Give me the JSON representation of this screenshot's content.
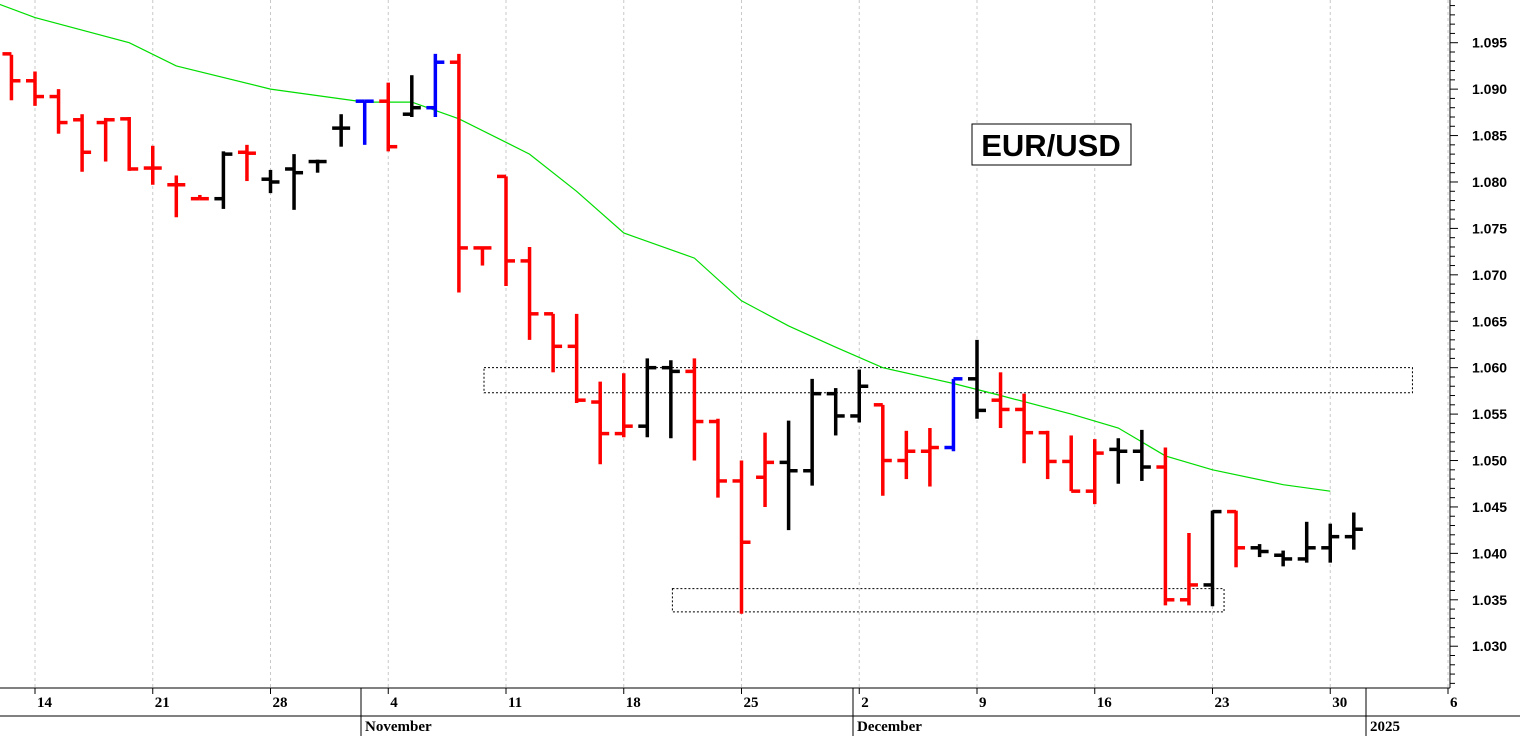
{
  "chart_data": {
    "type": "ohlc",
    "title": "EUR/USD",
    "ylim": [
      1.0255,
      1.0996
    ],
    "y_ticks": [
      1.03,
      1.035,
      1.04,
      1.045,
      1.05,
      1.055,
      1.06,
      1.065,
      1.07,
      1.075,
      1.08,
      1.085,
      1.09,
      1.095
    ],
    "y_tick_labels": [
      "1.030",
      "1.035",
      "1.040",
      "1.045",
      "1.050",
      "1.055",
      "1.060",
      "1.065",
      "1.070",
      "1.075",
      "1.080",
      "1.085",
      "1.090",
      "1.095"
    ],
    "x_tick_labels": [
      "14",
      "21",
      "28",
      "4",
      "11",
      "18",
      "25",
      "2",
      "9",
      "16",
      "23",
      "30",
      "6"
    ],
    "month_labels": [
      "November",
      "December",
      "2025"
    ],
    "grid": "vertical dotted",
    "colors": {
      "down": "#ff0000",
      "up": "#000000",
      "highlight": "#0000ff",
      "moving_average": "#00dd00",
      "grid": "#c8c8c8"
    },
    "bars": [
      {
        "date": "2024-10-10",
        "o": 1.0938,
        "h": 1.0955,
        "l": 1.0935,
        "c": 1.0938,
        "color": "down"
      },
      {
        "date": "2024-10-11",
        "o": 1.0938,
        "h": 1.0937,
        "l": 1.0888,
        "c": 1.0909,
        "color": "down"
      },
      {
        "date": "2024-10-14",
        "o": 1.0909,
        "h": 1.0919,
        "l": 1.0882,
        "c": 1.0892,
        "color": "down"
      },
      {
        "date": "2024-10-15",
        "o": 1.0892,
        "h": 1.09,
        "l": 1.0852,
        "c": 1.0864,
        "color": "down"
      },
      {
        "date": "2024-10-16",
        "o": 1.0867,
        "h": 1.0873,
        "l": 1.0811,
        "c": 1.0832,
        "color": "down"
      },
      {
        "date": "2024-10-17",
        "o": 1.0864,
        "h": 1.0869,
        "l": 1.0822,
        "c": 1.0867,
        "color": "down"
      },
      {
        "date": "2024-10-18",
        "o": 1.0868,
        "h": 1.087,
        "l": 1.0812,
        "c": 1.0814,
        "color": "down"
      },
      {
        "date": "2024-10-21",
        "o": 1.0815,
        "h": 1.0839,
        "l": 1.0797,
        "c": 1.0815,
        "color": "down"
      },
      {
        "date": "2024-10-22",
        "o": 1.0797,
        "h": 1.0807,
        "l": 1.0762,
        "c": 1.0797,
        "color": "down"
      },
      {
        "date": "2024-10-23",
        "o": 1.0782,
        "h": 1.0786,
        "l": 1.0782,
        "c": 1.0782,
        "color": "down"
      },
      {
        "date": "2024-10-24",
        "o": 1.0782,
        "h": 1.0833,
        "l": 1.0771,
        "c": 1.083,
        "color": "up"
      },
      {
        "date": "2024-10-25",
        "o": 1.0832,
        "h": 1.084,
        "l": 1.0801,
        "c": 1.0831,
        "color": "down"
      },
      {
        "date": "2024-10-28",
        "o": 1.0803,
        "h": 1.0813,
        "l": 1.0788,
        "c": 1.08,
        "color": "up"
      },
      {
        "date": "2024-10-29",
        "o": 1.0814,
        "h": 1.083,
        "l": 1.077,
        "c": 1.081,
        "color": "up"
      },
      {
        "date": "2024-10-30",
        "o": 1.0822,
        "h": 1.0824,
        "l": 1.081,
        "c": 1.0822,
        "color": "up"
      },
      {
        "date": "2024-10-31",
        "o": 1.0858,
        "h": 1.0873,
        "l": 1.0838,
        "c": 1.0858,
        "color": "up"
      },
      {
        "date": "2024-11-01",
        "o": 1.0887,
        "h": 1.0887,
        "l": 1.084,
        "c": 1.0887,
        "color": "highlight"
      },
      {
        "date": "2024-11-04",
        "o": 1.0887,
        "h": 1.0907,
        "l": 1.0833,
        "c": 1.0838,
        "color": "down"
      },
      {
        "date": "2024-11-05",
        "o": 1.0873,
        "h": 1.0915,
        "l": 1.087,
        "c": 1.088,
        "color": "up"
      },
      {
        "date": "2024-11-06",
        "o": 1.088,
        "h": 1.0938,
        "l": 1.087,
        "c": 1.0929,
        "color": "highlight"
      },
      {
        "date": "2024-11-07",
        "o": 1.0929,
        "h": 1.0938,
        "l": 1.0681,
        "c": 1.0729,
        "color": "down"
      },
      {
        "date": "2024-11-08",
        "o": 1.0729,
        "h": 1.073,
        "l": 1.071,
        "c": 1.0729,
        "color": "down"
      },
      {
        "date": "2024-11-11",
        "o": 1.0806,
        "h": 1.0806,
        "l": 1.0688,
        "c": 1.0715,
        "color": "down"
      },
      {
        "date": "2024-11-12",
        "o": 1.0715,
        "h": 1.073,
        "l": 1.063,
        "c": 1.0658,
        "color": "down"
      },
      {
        "date": "2024-11-13",
        "o": 1.0658,
        "h": 1.0658,
        "l": 1.0595,
        "c": 1.0623,
        "color": "down"
      },
      {
        "date": "2024-11-14",
        "o": 1.0623,
        "h": 1.0658,
        "l": 1.0562,
        "c": 1.0565,
        "color": "down"
      },
      {
        "date": "2024-11-15",
        "o": 1.0563,
        "h": 1.0585,
        "l": 1.0496,
        "c": 1.0529,
        "color": "down"
      },
      {
        "date": "2024-11-18",
        "o": 1.0529,
        "h": 1.0594,
        "l": 1.0525,
        "c": 1.0537,
        "color": "down"
      },
      {
        "date": "2024-11-19",
        "o": 1.0537,
        "h": 1.061,
        "l": 1.0525,
        "c": 1.06,
        "color": "up"
      },
      {
        "date": "2024-11-20",
        "o": 1.06,
        "h": 1.0608,
        "l": 1.0524,
        "c": 1.0596,
        "color": "up"
      },
      {
        "date": "2024-11-21",
        "o": 1.0596,
        "h": 1.061,
        "l": 1.05,
        "c": 1.0542,
        "color": "down"
      },
      {
        "date": "2024-11-22",
        "o": 1.0542,
        "h": 1.0545,
        "l": 1.046,
        "c": 1.0478,
        "color": "down"
      },
      {
        "date": "2024-11-25",
        "o": 1.0478,
        "h": 1.05,
        "l": 1.0335,
        "c": 1.0412,
        "color": "down"
      },
      {
        "date": "2024-11-26",
        "o": 1.0482,
        "h": 1.053,
        "l": 1.045,
        "c": 1.0498,
        "color": "down"
      },
      {
        "date": "2024-11-27",
        "o": 1.0498,
        "h": 1.0543,
        "l": 1.0425,
        "c": 1.0489,
        "color": "up"
      },
      {
        "date": "2024-11-28",
        "o": 1.0489,
        "h": 1.0588,
        "l": 1.0473,
        "c": 1.0572,
        "color": "up"
      },
      {
        "date": "2024-11-29",
        "o": 1.0572,
        "h": 1.0578,
        "l": 1.0527,
        "c": 1.0548,
        "color": "up"
      },
      {
        "date": "2024-12-02",
        "o": 1.0548,
        "h": 1.0598,
        "l": 1.0541,
        "c": 1.058,
        "color": "up"
      },
      {
        "date": "2024-12-03",
        "o": 1.056,
        "h": 1.056,
        "l": 1.0462,
        "c": 1.05,
        "color": "down"
      },
      {
        "date": "2024-12-04",
        "o": 1.05,
        "h": 1.0532,
        "l": 1.048,
        "c": 1.051,
        "color": "down"
      },
      {
        "date": "2024-12-05",
        "o": 1.051,
        "h": 1.0535,
        "l": 1.0472,
        "c": 1.0514,
        "color": "down"
      },
      {
        "date": "2024-12-06",
        "o": 1.0514,
        "h": 1.0588,
        "l": 1.051,
        "c": 1.0588,
        "color": "highlight"
      },
      {
        "date": "2024-12-09",
        "o": 1.0588,
        "h": 1.063,
        "l": 1.0545,
        "c": 1.0554,
        "color": "up"
      },
      {
        "date": "2024-12-10",
        "o": 1.0565,
        "h": 1.0595,
        "l": 1.0535,
        "c": 1.0555,
        "color": "down"
      },
      {
        "date": "2024-12-11",
        "o": 1.0555,
        "h": 1.0572,
        "l": 1.0497,
        "c": 1.053,
        "color": "down"
      },
      {
        "date": "2024-12-12",
        "o": 1.053,
        "h": 1.0532,
        "l": 1.048,
        "c": 1.0499,
        "color": "down"
      },
      {
        "date": "2024-12-13",
        "o": 1.0499,
        "h": 1.0527,
        "l": 1.0467,
        "c": 1.0467,
        "color": "down"
      },
      {
        "date": "2024-12-16",
        "o": 1.0467,
        "h": 1.0523,
        "l": 1.0453,
        "c": 1.0508,
        "color": "down"
      },
      {
        "date": "2024-12-17",
        "o": 1.0512,
        "h": 1.0524,
        "l": 1.0475,
        "c": 1.051,
        "color": "up"
      },
      {
        "date": "2024-12-18",
        "o": 1.051,
        "h": 1.0533,
        "l": 1.0478,
        "c": 1.0493,
        "color": "up"
      },
      {
        "date": "2024-12-19",
        "o": 1.0493,
        "h": 1.0514,
        "l": 1.0344,
        "c": 1.035,
        "color": "down"
      },
      {
        "date": "2024-12-20",
        "o": 1.035,
        "h": 1.0422,
        "l": 1.0344,
        "c": 1.0366,
        "color": "down"
      },
      {
        "date": "2024-12-23",
        "o": 1.0366,
        "h": 1.0446,
        "l": 1.0343,
        "c": 1.0445,
        "color": "up"
      },
      {
        "date": "2024-12-24",
        "o": 1.0445,
        "h": 1.0446,
        "l": 1.0385,
        "c": 1.0406,
        "color": "down"
      },
      {
        "date": "2024-12-25",
        "o": 1.0406,
        "h": 1.041,
        "l": 1.0396,
        "c": 1.0402,
        "color": "up"
      },
      {
        "date": "2024-12-26",
        "o": 1.0398,
        "h": 1.0403,
        "l": 1.0386,
        "c": 1.0394,
        "color": "up"
      },
      {
        "date": "2024-12-27",
        "o": 1.0394,
        "h": 1.0434,
        "l": 1.039,
        "c": 1.0406,
        "color": "up"
      },
      {
        "date": "2024-12-30",
        "o": 1.0406,
        "h": 1.0432,
        "l": 1.039,
        "c": 1.0418,
        "color": "up"
      },
      {
        "date": "2024-12-31",
        "o": 1.0418,
        "h": 1.0444,
        "l": 1.0404,
        "c": 1.0426,
        "color": "up"
      }
    ],
    "moving_average": [
      {
        "date": "2024-10-10",
        "v": 1.0996
      },
      {
        "date": "2024-10-14",
        "v": 1.0977
      },
      {
        "date": "2024-10-18",
        "v": 1.095
      },
      {
        "date": "2024-10-22",
        "v": 1.0925
      },
      {
        "date": "2024-10-28",
        "v": 1.09
      },
      {
        "date": "2024-11-01",
        "v": 1.0886
      },
      {
        "date": "2024-11-05",
        "v": 1.0886
      },
      {
        "date": "2024-11-07",
        "v": 1.0868
      },
      {
        "date": "2024-11-12",
        "v": 1.083
      },
      {
        "date": "2024-11-14",
        "v": 1.079
      },
      {
        "date": "2024-11-18",
        "v": 1.0745
      },
      {
        "date": "2024-11-21",
        "v": 1.0718
      },
      {
        "date": "2024-11-25",
        "v": 1.0672
      },
      {
        "date": "2024-11-27",
        "v": 1.0645
      },
      {
        "date": "2024-11-29",
        "v": 1.0622
      },
      {
        "date": "2024-12-03",
        "v": 1.06
      },
      {
        "date": "2024-12-06",
        "v": 1.0583
      },
      {
        "date": "2024-12-10",
        "v": 1.057
      },
      {
        "date": "2024-12-13",
        "v": 1.055
      },
      {
        "date": "2024-12-17",
        "v": 1.0535
      },
      {
        "date": "2024-12-19",
        "v": 1.0505
      },
      {
        "date": "2024-12-23",
        "v": 1.049
      },
      {
        "date": "2024-12-26",
        "v": 1.0474
      },
      {
        "date": "2024-12-30",
        "v": 1.0467
      }
    ],
    "zones": [
      {
        "date_start": "2024-11-11",
        "date_end": "2025-01-03",
        "y_low": 1.0573,
        "y_high": 1.06
      },
      {
        "date_start": "2024-11-21",
        "date_end": "2024-12-24",
        "y_low": 1.0337,
        "y_high": 1.0362
      }
    ]
  }
}
